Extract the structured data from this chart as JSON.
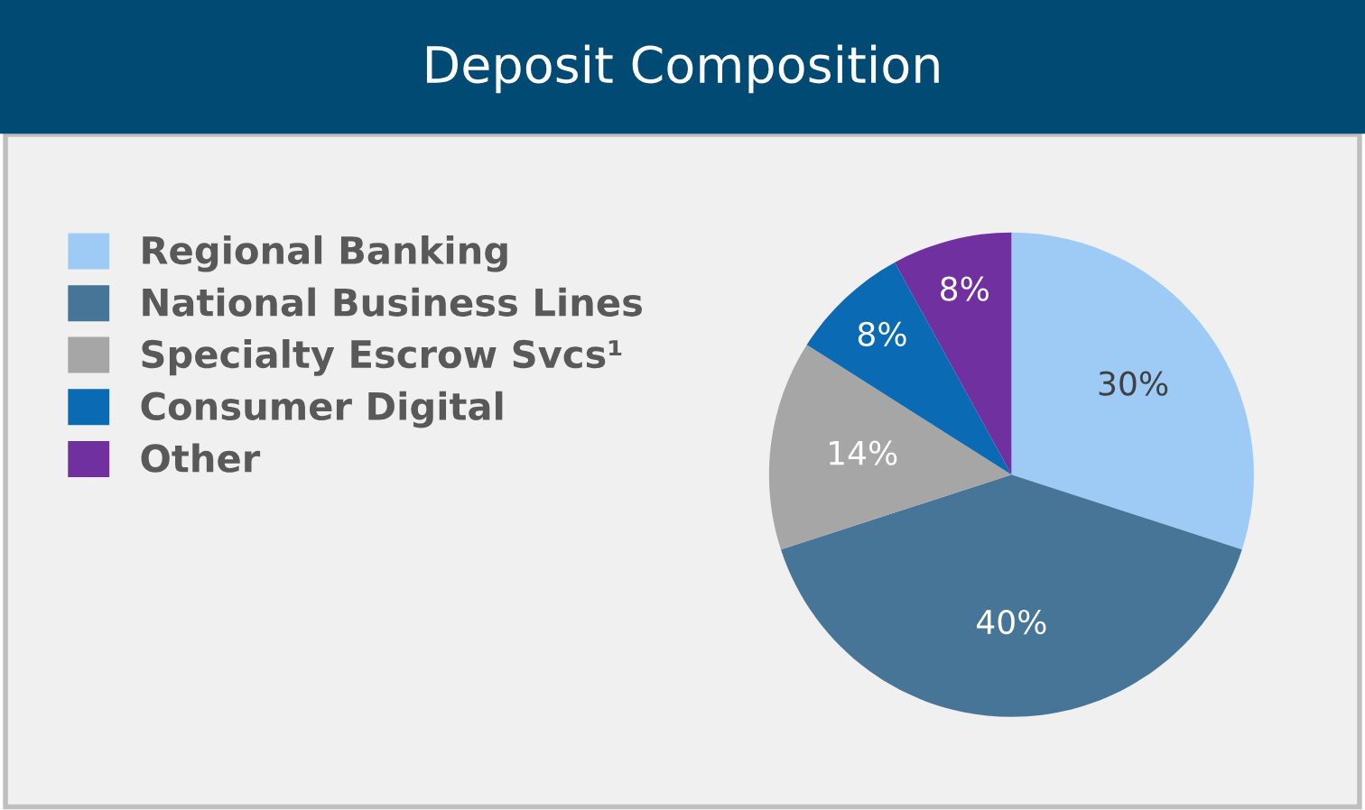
{
  "chart_data": {
    "type": "pie",
    "title": "Deposit Composition",
    "categories": [
      "Regional Banking",
      "National Business Lines",
      "Specialty Escrow Svcs¹",
      "Consumer Digital",
      "Other"
    ],
    "values": [
      30,
      40,
      14,
      8,
      8
    ],
    "colors": [
      "#9dcbf5",
      "#467597",
      "#a6a6a6",
      "#0a6ab4",
      "#7030a0"
    ],
    "value_labels": [
      "30%",
      "40%",
      "14%",
      "8%",
      "8%"
    ],
    "legend": "left"
  }
}
